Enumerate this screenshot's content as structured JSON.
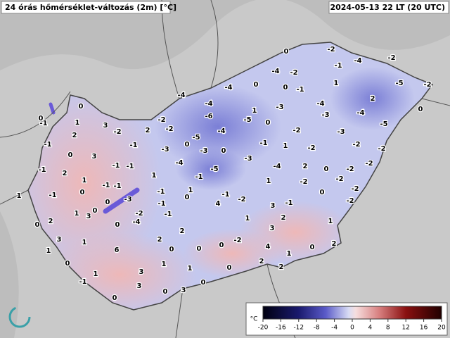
{
  "header": {
    "title": "24 órás hőmérséklet-változás (2m) [°C]",
    "timestamp": "2024-05-13 22 LT (20 UTC)"
  },
  "colorbar": {
    "unit": "°C",
    "clim": [
      -20,
      20
    ],
    "ticks": [
      -20,
      -16,
      -12,
      -8,
      -4,
      0,
      4,
      8,
      12,
      16,
      20
    ]
  },
  "stations": [
    0,
    -2,
    -4,
    -2,
    -4,
    -1,
    -2,
    -4,
    0,
    0,
    -1,
    1,
    -5,
    -2,
    -4,
    -4,
    -4,
    2,
    0,
    1,
    -3,
    -6,
    -3,
    -4,
    -5,
    -4,
    0,
    -5,
    -5,
    -2,
    -2,
    2,
    -2,
    -2,
    -3,
    0,
    1,
    3,
    -1,
    0,
    2,
    -1,
    0,
    -3,
    -3,
    0,
    -1,
    1,
    -2,
    -2,
    -2,
    -1,
    3,
    0,
    -1,
    -1,
    -4,
    -5,
    -3,
    -4,
    2,
    0,
    -2,
    -1,
    2,
    1,
    1,
    -1,
    -1,
    -1,
    1,
    -2,
    -2,
    -2,
    -1,
    1,
    0,
    1,
    -1,
    -1,
    -2,
    0,
    -2,
    -2,
    -1,
    0,
    4,
    0,
    -3,
    -1,
    3,
    1,
    3,
    0,
    -2,
    -1,
    1,
    0,
    2,
    0,
    -4,
    2,
    2,
    1,
    3,
    3,
    1,
    2,
    0,
    -2,
    4,
    2,
    6,
    0,
    0,
    0,
    1,
    1,
    0,
    1,
    1,
    0,
    2,
    2,
    1,
    3,
    -1,
    0,
    3,
    0,
    3,
    0
  ]
}
